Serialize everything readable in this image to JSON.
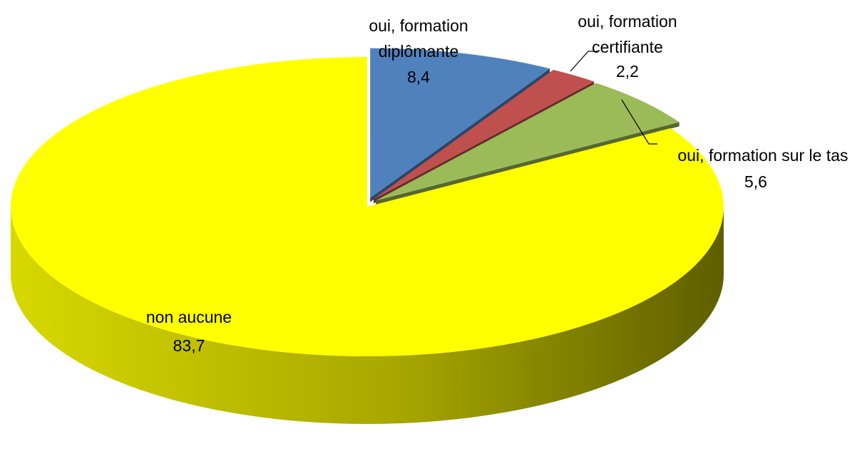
{
  "chart_data": {
    "type": "pie",
    "categories": [
      "oui, formation diplômante",
      "oui, formation certifiante",
      "oui, formation sur le tas",
      "non aucune"
    ],
    "values": [
      8.4,
      2.2,
      5.6,
      83.7
    ],
    "value_labels": [
      "8,4",
      "2,2",
      "5,6",
      "83,7"
    ],
    "colors": [
      "#4f81bd",
      "#c0504d",
      "#9bbb59",
      "#ffff00"
    ],
    "three_d": true
  }
}
